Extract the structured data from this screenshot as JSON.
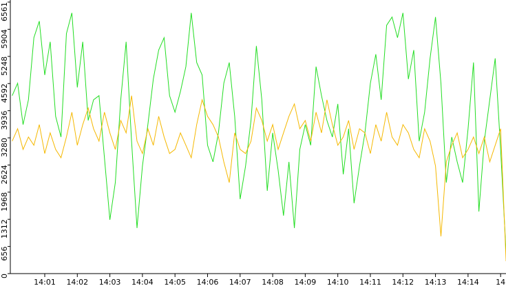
{
  "chart_data": {
    "type": "line",
    "categories": [
      null,
      null,
      null,
      null,
      null,
      null,
      "14:01",
      null,
      null,
      null,
      null,
      null,
      "14:02",
      null,
      null,
      null,
      null,
      null,
      "14:03",
      null,
      null,
      null,
      null,
      null,
      "14:04",
      null,
      null,
      null,
      null,
      null,
      "14:05",
      null,
      null,
      null,
      null,
      null,
      "14:06",
      null,
      null,
      null,
      null,
      null,
      "14:07",
      null,
      null,
      null,
      null,
      null,
      "14:08",
      null,
      null,
      null,
      null,
      null,
      "14:09",
      null,
      null,
      null,
      null,
      null,
      "14:10",
      null,
      null,
      null,
      null,
      null,
      "14:11",
      null,
      null,
      null,
      null,
      null,
      "14:12",
      null,
      null,
      null,
      null,
      null,
      "14:13",
      null,
      null,
      null,
      null,
      null,
      "14:14",
      null,
      null,
      null,
      null,
      null,
      "14",
      null
    ],
    "series": [
      {
        "color": "#22dd22",
        "values": [
          4300,
          4600,
          3600,
          4200,
          5700,
          6100,
          4800,
          5600,
          3800,
          3300,
          5800,
          6300,
          4500,
          5600,
          3700,
          4200,
          4300,
          2800,
          1300,
          2200,
          4200,
          5600,
          3200,
          1100,
          2600,
          3600,
          4700,
          5400,
          5700,
          4300,
          3900,
          4400,
          5000,
          6300,
          5100,
          4800,
          3100,
          2700,
          3400,
          4600,
          5100,
          3800,
          1800,
          2600,
          3700,
          5500,
          4200,
          2000,
          3400,
          2500,
          1400,
          2700,
          1100,
          3000,
          3600,
          3100,
          5000,
          4300,
          3700,
          3300,
          4100,
          2400,
          3500,
          1700,
          2600,
          3400,
          4600,
          5300,
          4200,
          6000,
          6200,
          5700,
          6300,
          4700,
          5400,
          3200,
          3900,
          5200,
          6200,
          4600,
          2200,
          3300,
          2700,
          2200,
          3500,
          5100,
          1500,
          3200,
          4200,
          5200,
          3000,
          500
        ]
      },
      {
        "color": "#f5b800",
        "values": [
          3200,
          3500,
          3000,
          3300,
          3100,
          3600,
          2900,
          3400,
          3000,
          2800,
          3300,
          3900,
          3100,
          3600,
          4000,
          3500,
          3200,
          3900,
          3400,
          3000,
          3700,
          3400,
          4300,
          3200,
          2900,
          3500,
          3100,
          3800,
          3300,
          2900,
          3000,
          3400,
          3100,
          2800,
          3600,
          4200,
          3800,
          3600,
          3300,
          2700,
          2200,
          3400,
          3000,
          2900,
          3200,
          4000,
          3700,
          3200,
          3600,
          3000,
          3400,
          3800,
          4100,
          3500,
          3700,
          3200,
          3900,
          3400,
          4200,
          3600,
          3100,
          3300,
          3700,
          3000,
          3500,
          3400,
          2900,
          3600,
          3200,
          3900,
          3300,
          3100,
          3600,
          3400,
          3000,
          2800,
          3500,
          3200,
          2600,
          900,
          2700,
          3100,
          3400,
          2800,
          3000,
          3300,
          2900,
          3300,
          2700,
          3100,
          3500,
          300
        ]
      }
    ],
    "ylim": [
      0,
      6561
    ],
    "yticks": [
      0,
      656,
      1312,
      1968,
      2624,
      3280,
      3936,
      4592,
      5248,
      5904,
      6561
    ]
  }
}
